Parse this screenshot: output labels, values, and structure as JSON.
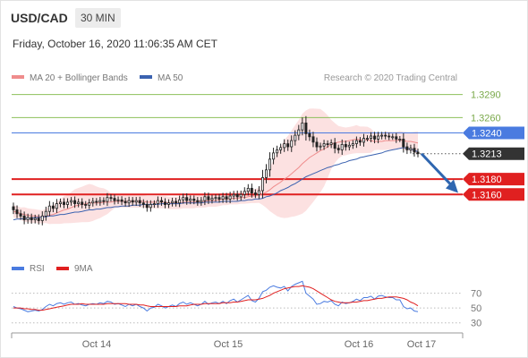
{
  "header": {
    "symbol": "USD/CAD",
    "timeframe": "30 MIN",
    "datetime": "Friday, October 16, 2020 11:06:35 AM CET"
  },
  "colors": {
    "support": "#e02020",
    "resistance_green": "#8dc05a",
    "resistance_blue": "#4a7be0",
    "price_tag": "#333333",
    "ma20": "#ef8c8c",
    "ma50": "#3b62b0",
    "bollinger_fill": "#fbdcdc",
    "rsi": "#4a7be0",
    "rsi_ma": "#e02020",
    "arrow": "#2f66b0"
  },
  "legend": {
    "ma20": "MA 20 + Bollinger Bands",
    "ma50": "MA 50",
    "rsi": "RSI",
    "rsi_ma": "9MA"
  },
  "credit": "Research © 2020 Trading Central",
  "chart_data": [
    {
      "type": "candlestick",
      "x_ticks": [
        "Oct 14",
        "Oct 15",
        "Oct 16",
        "Oct 17"
      ],
      "levels": [
        {
          "label": "1.3290",
          "value": 1.329,
          "kind": "resistance",
          "color": "#8dc05a"
        },
        {
          "label": "1.3260",
          "value": 1.326,
          "kind": "resistance",
          "color": "#8dc05a"
        },
        {
          "label": "1.3240",
          "value": 1.324,
          "kind": "resistance",
          "color": "#4a7be0"
        },
        {
          "label": "1.3213",
          "value": 1.3213,
          "kind": "last-price",
          "color": "#333333"
        },
        {
          "label": "1.3180",
          "value": 1.318,
          "kind": "support",
          "color": "#e02020"
        },
        {
          "label": "1.3160",
          "value": 1.316,
          "kind": "support",
          "color": "#e02020"
        }
      ],
      "ylim": [
        1.308,
        1.33
      ],
      "forecast": {
        "from": 1.3213,
        "to": 1.3162,
        "direction": "down"
      },
      "close": [
        1.314,
        1.3135,
        1.3132,
        1.3127,
        1.313,
        1.3127,
        1.3129,
        1.3126,
        1.3132,
        1.3138,
        1.3145,
        1.3142,
        1.3148,
        1.315,
        1.3147,
        1.315,
        1.3152,
        1.3148,
        1.315,
        1.3147,
        1.3146,
        1.3149,
        1.3151,
        1.315,
        1.3152,
        1.3151,
        1.3156,
        1.3155,
        1.3152,
        1.3153,
        1.3151,
        1.3149,
        1.3152,
        1.315,
        1.3152,
        1.3149,
        1.3147,
        1.3143,
        1.3147,
        1.3148,
        1.3152,
        1.315,
        1.3147,
        1.3149,
        1.3151,
        1.3149,
        1.3153,
        1.3156,
        1.3152,
        1.3154,
        1.3152,
        1.315,
        1.3152,
        1.3157,
        1.3153,
        1.3155,
        1.3156,
        1.3154,
        1.3157,
        1.3154,
        1.3158,
        1.316,
        1.3157,
        1.316,
        1.3164,
        1.3168,
        1.3162,
        1.316,
        1.3165,
        1.3182,
        1.3192,
        1.3206,
        1.3214,
        1.3218,
        1.3221,
        1.3226,
        1.3222,
        1.323,
        1.3237,
        1.3244,
        1.3253,
        1.3239,
        1.3235,
        1.3228,
        1.3222,
        1.3223,
        1.3226,
        1.3225,
        1.3227,
        1.322,
        1.3218,
        1.3225,
        1.3222,
        1.3224,
        1.3226,
        1.323,
        1.3228,
        1.3233,
        1.3233,
        1.3236,
        1.3232,
        1.3236,
        1.3237,
        1.3236,
        1.3235,
        1.3235,
        1.3232,
        1.3232,
        1.3222,
        1.3218,
        1.322,
        1.3215,
        1.3213
      ],
      "ma20": [
        1.3138,
        1.3137,
        1.3135,
        1.3134,
        1.3133,
        1.3132,
        1.3132,
        1.3131,
        1.3131,
        1.3132,
        1.3133,
        1.3134,
        1.3136,
        1.3138,
        1.314,
        1.3141,
        1.3143,
        1.3145,
        1.3146,
        1.3147,
        1.3148,
        1.3149,
        1.3149,
        1.3149,
        1.3149,
        1.315,
        1.315,
        1.315,
        1.3151,
        1.3151,
        1.3151,
        1.3151,
        1.3151,
        1.3151,
        1.3151,
        1.3151,
        1.3151,
        1.315,
        1.315,
        1.315,
        1.315,
        1.315,
        1.315,
        1.3149,
        1.3149,
        1.3149,
        1.3149,
        1.315,
        1.315,
        1.315,
        1.315,
        1.3151,
        1.3151,
        1.3151,
        1.3152,
        1.3152,
        1.3152,
        1.3153,
        1.3154,
        1.3154,
        1.3155,
        1.3155,
        1.3155,
        1.3156,
        1.3156,
        1.3157,
        1.3158,
        1.3158,
        1.3159,
        1.3161,
        1.3163,
        1.3166,
        1.317,
        1.3173,
        1.3176,
        1.318,
        1.3183,
        1.3187,
        1.3191,
        1.3195,
        1.32,
        1.3204,
        1.3208,
        1.3211,
        1.3214,
        1.3217,
        1.3219,
        1.3222,
        1.3225,
        1.3227,
        1.3228,
        1.3229,
        1.3229,
        1.323,
        1.3231,
        1.3232,
        1.3231,
        1.3231,
        1.3231,
        1.323,
        1.3229,
        1.3229,
        1.3229,
        1.323,
        1.323,
        1.323,
        1.323,
        1.3231,
        1.323,
        1.3229,
        1.3229,
        1.3228,
        1.3227
      ],
      "ma50": [
        1.3127,
        1.3128,
        1.3128,
        1.3129,
        1.3129,
        1.3129,
        1.313,
        1.313,
        1.3131,
        1.3131,
        1.3132,
        1.3132,
        1.3133,
        1.3134,
        1.3134,
        1.3135,
        1.3136,
        1.3137,
        1.3137,
        1.3138,
        1.3139,
        1.314,
        1.314,
        1.3141,
        1.3141,
        1.3142,
        1.3143,
        1.3143,
        1.3144,
        1.3144,
        1.3145,
        1.3145,
        1.3145,
        1.3146,
        1.3146,
        1.3146,
        1.3147,
        1.3147,
        1.3147,
        1.3147,
        1.3147,
        1.3148,
        1.3148,
        1.3148,
        1.3148,
        1.3148,
        1.3148,
        1.3149,
        1.3149,
        1.3149,
        1.3149,
        1.3149,
        1.3149,
        1.315,
        1.315,
        1.315,
        1.315,
        1.315,
        1.3151,
        1.3151,
        1.3151,
        1.3151,
        1.3151,
        1.3152,
        1.3152,
        1.3153,
        1.3153,
        1.3154,
        1.3154,
        1.3155,
        1.3157,
        1.3158,
        1.316,
        1.3162,
        1.3165,
        1.3167,
        1.3169,
        1.3172,
        1.3174,
        1.3177,
        1.318,
        1.3183,
        1.3185,
        1.3187,
        1.3189,
        1.3191,
        1.3193,
        1.3195,
        1.3196,
        1.3198,
        1.3199,
        1.3201,
        1.3202,
        1.3204,
        1.3205,
        1.3206,
        1.3208,
        1.3209,
        1.321,
        1.3211,
        1.3212,
        1.3213,
        1.3214,
        1.3216,
        1.3217,
        1.3218,
        1.3219,
        1.322,
        1.3221,
        1.322,
        1.3219,
        1.3217,
        1.3216
      ]
    },
    {
      "type": "line",
      "name": "RSI",
      "y_ticks": [
        70,
        50,
        30
      ],
      "ylim": [
        20,
        90
      ],
      "rsi": [
        52,
        50,
        49,
        47,
        45,
        46,
        47,
        46,
        48,
        52,
        55,
        53,
        56,
        57,
        55,
        57,
        58,
        55,
        56,
        54,
        53,
        55,
        56,
        55,
        57,
        56,
        59,
        58,
        55,
        56,
        54,
        52,
        55,
        53,
        55,
        52,
        50,
        46,
        50,
        51,
        55,
        53,
        50,
        52,
        54,
        52,
        56,
        58,
        55,
        57,
        55,
        53,
        55,
        59,
        55,
        57,
        58,
        56,
        59,
        56,
        60,
        62,
        58,
        61,
        64,
        67,
        60,
        58,
        63,
        72,
        74,
        78,
        80,
        78,
        77,
        79,
        73,
        79,
        82,
        84,
        86,
        70,
        66,
        62,
        55,
        56,
        59,
        58,
        60,
        55,
        53,
        58,
        56,
        57,
        59,
        62,
        60,
        64,
        64,
        66,
        62,
        66,
        67,
        65,
        64,
        64,
        61,
        61,
        52,
        49,
        50,
        46,
        45
      ],
      "rsi_ma": [
        50,
        50,
        50,
        49,
        49,
        48,
        48,
        47,
        47,
        48,
        49,
        50,
        51,
        52,
        53,
        54,
        55,
        55,
        55,
        56,
        55,
        55,
        55,
        55,
        55,
        55,
        56,
        56,
        56,
        56,
        56,
        56,
        55,
        55,
        55,
        54,
        54,
        53,
        52,
        52,
        52,
        52,
        52,
        52,
        52,
        52,
        53,
        53,
        53,
        54,
        55,
        55,
        55,
        56,
        56,
        56,
        56,
        56,
        57,
        57,
        57,
        58,
        58,
        59,
        60,
        61,
        61,
        61,
        62,
        63,
        65,
        67,
        70,
        72,
        74,
        76,
        77,
        78,
        79,
        79,
        80,
        79,
        78,
        76,
        73,
        70,
        67,
        64,
        61,
        59,
        58,
        57,
        57,
        57,
        58,
        58,
        59,
        60,
        60,
        61,
        62,
        63,
        63,
        64,
        65,
        65,
        65,
        64,
        63,
        61,
        58,
        56,
        53
      ]
    }
  ]
}
